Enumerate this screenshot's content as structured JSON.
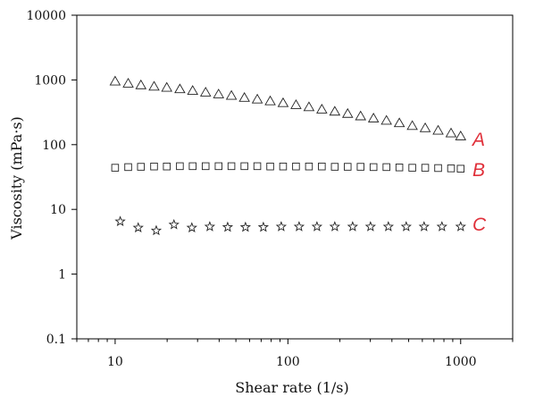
{
  "chart_data": {
    "type": "scatter",
    "xlabel": "Shear rate (1/s)",
    "ylabel": "Viscosity (mPa·s)",
    "x_scale": "log",
    "y_scale": "log",
    "xlim": [
      6,
      2000
    ],
    "ylim": [
      0.1,
      10000
    ],
    "x_tick_labels": [
      "10",
      "100",
      "1000"
    ],
    "y_tick_labels": [
      "0.1",
      "1",
      "10",
      "100",
      "1000",
      "10000"
    ],
    "grid": false,
    "label_color": "#e0303a",
    "series": [
      {
        "name": "A",
        "marker": "triangle",
        "x": [
          10,
          11.9,
          14.1,
          16.8,
          19.9,
          23.7,
          28.1,
          33.4,
          39.7,
          47.1,
          56,
          66.5,
          79,
          93.8,
          111.4,
          132.4,
          157.2,
          186.8,
          221.8,
          263.5,
          313,
          371.8,
          441.7,
          524.7,
          623.3,
          740.4,
          879.6,
          1000
        ],
        "y": [
          950,
          880,
          830,
          790,
          760,
          720,
          680,
          640,
          600,
          570,
          530,
          500,
          470,
          440,
          410,
          380,
          350,
          325,
          300,
          275,
          255,
          235,
          215,
          195,
          180,
          165,
          150,
          135
        ]
      },
      {
        "name": "B",
        "marker": "square",
        "x": [
          10,
          11.9,
          14.1,
          16.8,
          19.9,
          23.7,
          28.1,
          33.4,
          39.7,
          47.1,
          56,
          66.5,
          79,
          93.8,
          111.4,
          132.4,
          157.2,
          186.8,
          221.8,
          263.5,
          313,
          371.8,
          441.7,
          524.7,
          623.3,
          740.4,
          879.6,
          1000
        ],
        "y": [
          44,
          45,
          45.5,
          46,
          46,
          46.5,
          46.5,
          46.5,
          46.5,
          46.5,
          46.5,
          46.5,
          46,
          46,
          46,
          46,
          46,
          45.5,
          45.5,
          45.5,
          45,
          45,
          44.5,
          44,
          44,
          43.5,
          43,
          42.5
        ]
      },
      {
        "name": "C",
        "marker": "star",
        "x": [
          10.7,
          13.6,
          17.3,
          21.9,
          27.8,
          35.3,
          44.8,
          56.8,
          72.1,
          91.5,
          116.1,
          147.3,
          186.8,
          237,
          300.7,
          381.5,
          484,
          614.1,
          779.2,
          1000
        ],
        "y": [
          6.5,
          5.2,
          4.7,
          5.8,
          5.2,
          5.4,
          5.3,
          5.3,
          5.3,
          5.4,
          5.4,
          5.4,
          5.4,
          5.4,
          5.4,
          5.4,
          5.4,
          5.4,
          5.4,
          5.4
        ]
      }
    ]
  }
}
